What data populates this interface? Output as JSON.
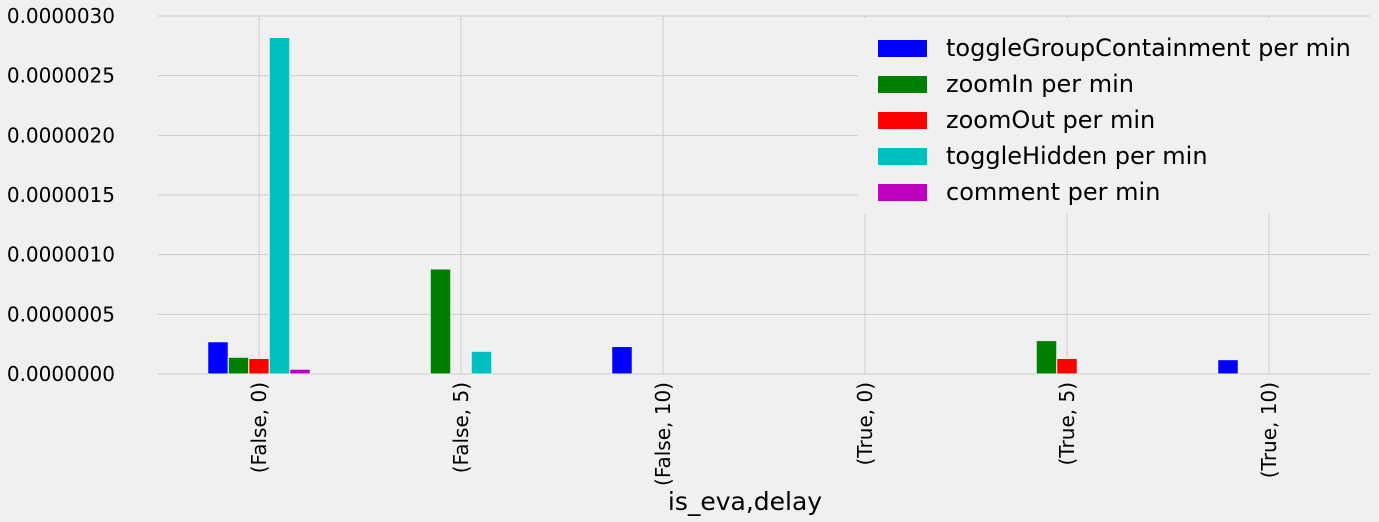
{
  "chart_data": {
    "type": "bar",
    "xlabel": "is_eva,delay",
    "ylabel": "",
    "ylim": [
      0,
      3e-06
    ],
    "yticks": [
      "0.0000000",
      "0.0000005",
      "0.0000010",
      "0.0000015",
      "0.0000020",
      "0.0000025",
      "0.0000030"
    ],
    "categories": [
      "(False, 0)",
      "(False, 5)",
      "(False, 10)",
      "(True, 0)",
      "(True, 5)",
      "(True, 10)"
    ],
    "grid": true,
    "legend_position": "top-right",
    "series": [
      {
        "name": "toggleGroupContainment per min",
        "color": "#0000ff",
        "values": [
          2.7e-07,
          0,
          2.3e-07,
          0,
          0,
          1.2e-07
        ]
      },
      {
        "name": "zoomIn per min",
        "color": "#008000",
        "values": [
          1.4e-07,
          8.8e-07,
          0,
          0,
          2.8e-07,
          0
        ]
      },
      {
        "name": "zoomOut per min",
        "color": "#ff0000",
        "values": [
          1.3e-07,
          0,
          0,
          0,
          1.3e-07,
          0
        ]
      },
      {
        "name": "toggleHidden per min",
        "color": "#00bfbf",
        "values": [
          2.82e-06,
          1.9e-07,
          0,
          0,
          0,
          0
        ]
      },
      {
        "name": "comment per min",
        "color": "#bf00bf",
        "values": [
          4e-08,
          0,
          0,
          0,
          0,
          0
        ]
      }
    ]
  }
}
